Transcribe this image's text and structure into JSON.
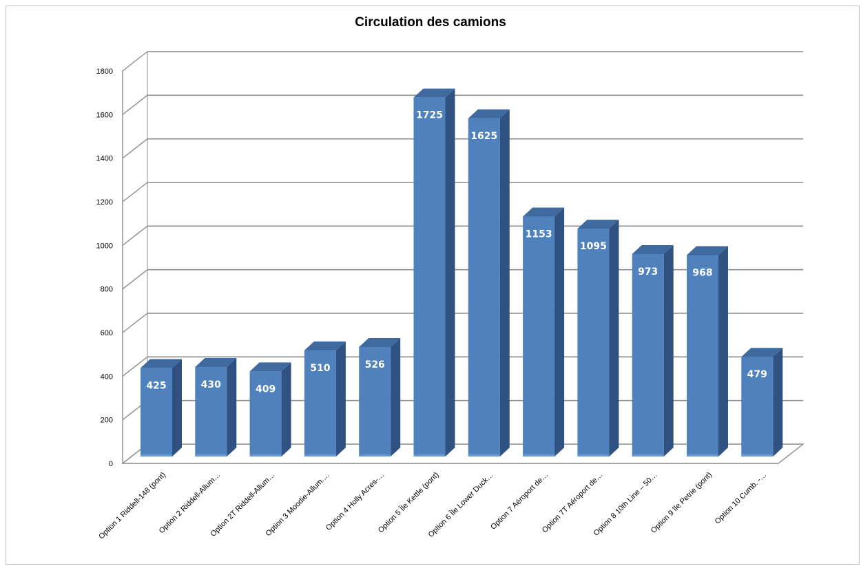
{
  "chart_data": {
    "type": "bar",
    "title": "Circulation des camions",
    "xlabel": "",
    "ylabel": "",
    "ylim": [
      0,
      1800
    ],
    "yticks": [
      "0",
      "200",
      "400",
      "600",
      "800",
      "1000",
      "1200",
      "1400",
      "1600",
      "1800"
    ],
    "grid": true,
    "legend": "none",
    "style": "3d-column",
    "categories": [
      "Option 1 Riddell-148 (pont)",
      "Option 2 Riddell-Allum…",
      "Option 2T Riddell-Allum…",
      "Option 3 Moodie-Allum.…",
      "Option 4 Holly Acres-…",
      "Option 5 Île Kettle (pont)",
      "Option 6 Île Lower Duck…",
      "Option 7 Aéroport de…",
      "Option 7T Aéroport de…",
      "Option 8 10th Line – 50…",
      "Option 9 île Petrie (pont)",
      "Option 10 Cumb. -…"
    ],
    "values": [
      425,
      430,
      409,
      510,
      526,
      1725,
      1625,
      1153,
      1095,
      973,
      968,
      479
    ],
    "data_labels": [
      "425",
      "430",
      "409",
      "510",
      "526",
      "1725",
      "1625",
      "1153",
      "1095",
      "973",
      "968",
      "479"
    ],
    "colors": {
      "front": "#4f81bd",
      "side": "#2f5282",
      "top": "#3f6aa0",
      "grid": "#8c8c8c"
    }
  }
}
